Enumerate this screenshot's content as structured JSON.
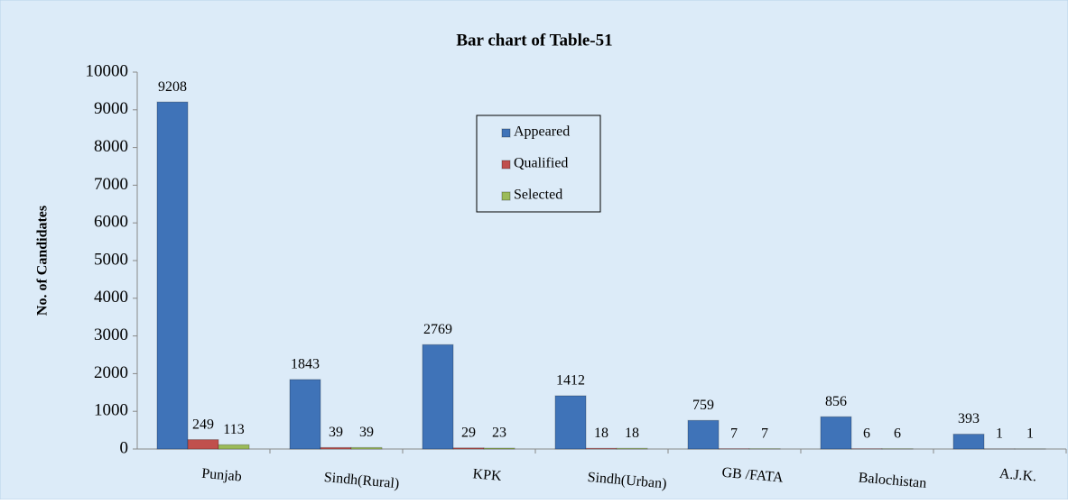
{
  "chart_data": {
    "type": "bar",
    "title": "Bar chart of Table-51",
    "ylabel": "No. of Candidates",
    "categories": [
      "Punjab",
      "Sindh(Rural)",
      "KPK",
      "Sindh(Urban)",
      "GB /FATA",
      "Balochistan",
      "A.J.K."
    ],
    "series": [
      {
        "name": "Appeared",
        "color": "#3f73b8",
        "values": [
          9208,
          1843,
          2769,
          1412,
          759,
          856,
          393
        ]
      },
      {
        "name": "Qualified",
        "color": "#c0504d",
        "values": [
          249,
          39,
          29,
          18,
          7,
          6,
          1
        ]
      },
      {
        "name": "Selected",
        "color": "#9bbb59",
        "values": [
          113,
          39,
          23,
          18,
          7,
          6,
          1
        ]
      }
    ],
    "ylim": [
      0,
      10000
    ],
    "yticks": [
      0,
      1000,
      2000,
      3000,
      4000,
      5000,
      6000,
      7000,
      8000,
      9000,
      10000
    ],
    "grid": false,
    "legend": "top-center"
  }
}
